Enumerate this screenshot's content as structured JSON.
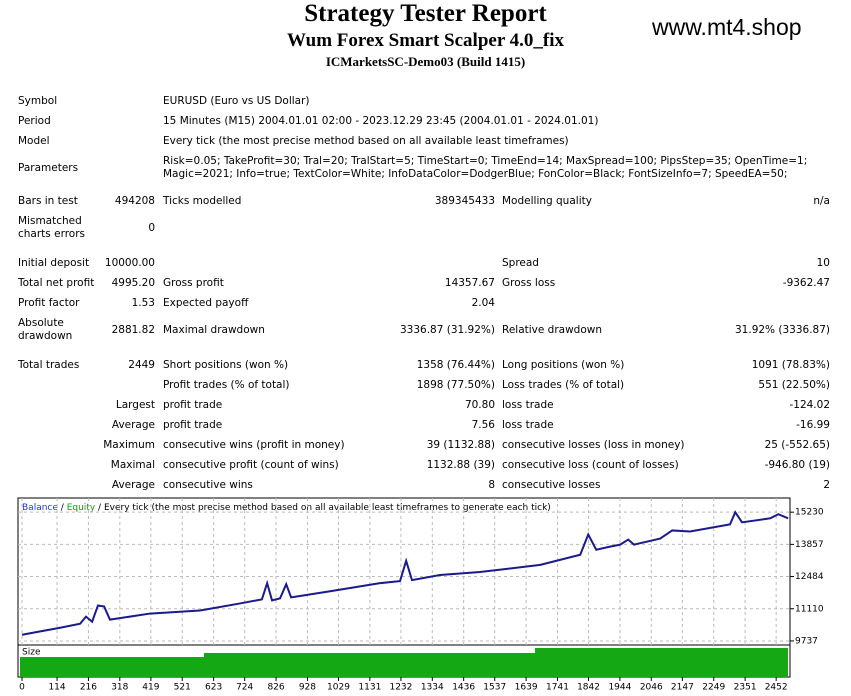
{
  "header": {
    "title": "Strategy Tester Report",
    "subtitle": "Wum Forex Smart Scalper 4.0_fix",
    "server": "ICMarketsSC-Demo03 (Build 1415)",
    "watermark": "www.mt4.shop"
  },
  "table": {
    "rows": [
      {
        "label": "Symbol",
        "span": "EURUSD (Euro vs US Dollar)"
      },
      {
        "label": "Period",
        "span": "15 Minutes (M15) 2004.01.01 02:00 - 2023.12.29 23:45 (2004.01.01 - 2024.01.01)"
      },
      {
        "label": "Model",
        "span": "Every tick (the most precise method based on all available least timeframes)"
      },
      {
        "label": "Parameters",
        "span": "Risk=0.05; TakeProfit=30; Tral=20; TralStart=5; TimeStart=0; TimeEnd=14; MaxSpread=100; PipsStep=35; OpenTime=1; Magic=2021; Info=true; TextColor=White; InfoDataColor=DodgerBlue; FonColor=Black; FontSizeInfo=7; SpeedEA=50;"
      },
      {
        "label": "Bars in test",
        "value": "494208",
        "label2": "Ticks modelled",
        "value2": "389345433",
        "label3": "Modelling quality",
        "value3": "n/a"
      },
      {
        "label": "Mismatched charts errors",
        "value": "0"
      },
      {
        "label": "Initial deposit",
        "value": "10000.00",
        "label3": "Spread",
        "value3": "10"
      },
      {
        "label": "Total net profit",
        "value": "4995.20",
        "label2": "Gross profit",
        "value2": "14357.67",
        "label3": "Gross loss",
        "value3": "-9362.47"
      },
      {
        "label": "Profit factor",
        "value": "1.53",
        "label2": "Expected payoff",
        "value2": "2.04"
      },
      {
        "label": "Absolute drawdown",
        "value": "2881.82",
        "label2": "Maximal drawdown",
        "value2": "3336.87 (31.92%)",
        "label3": "Relative drawdown",
        "value3": "31.92% (3336.87)"
      },
      {
        "label": "Total trades",
        "value": "2449",
        "label2": "Short positions (won %)",
        "value2": "1358 (76.44%)",
        "label3": "Long positions (won %)",
        "value3": "1091 (78.83%)"
      },
      {
        "label2": "Profit trades (% of total)",
        "value2": "1898 (77.50%)",
        "label3": "Loss trades (% of total)",
        "value3": "551 (22.50%)"
      },
      {
        "value": "Largest",
        "label2": "profit trade",
        "value2": "70.80",
        "label3": "loss trade",
        "value3": "-124.02"
      },
      {
        "value": "Average",
        "label2": "profit trade",
        "value2": "7.56",
        "label3": "loss trade",
        "value3": "-16.99"
      },
      {
        "value": "Maximum",
        "label2": "consecutive wins (profit in money)",
        "value2": "39 (1132.88)",
        "label3": "consecutive losses (loss in money)",
        "value3": "25 (-552.65)"
      },
      {
        "value": "Maximal",
        "label2": "consecutive profit (count of wins)",
        "value2": "1132.88 (39)",
        "label3": "consecutive loss (count of losses)",
        "value3": "-946.80 (19)"
      },
      {
        "value": "Average",
        "label2": "consecutive wins",
        "value2": "8",
        "label3": "consecutive losses",
        "value3": "2"
      }
    ]
  },
  "chart_data": {
    "type": "line",
    "legend": {
      "balance": "Balance",
      "sep1": "/",
      "equity": "Equity",
      "sep2": "/",
      "model": "Every tick (the most precise method based on all available least timeframes to generate each tick)"
    },
    "size_label": "Size",
    "x": [
      0,
      124,
      189,
      208,
      228,
      247,
      267,
      286,
      416,
      579,
      709,
      780,
      797,
      813,
      839,
      859,
      875,
      1002,
      1164,
      1229,
      1249,
      1268,
      1359,
      1489,
      1685,
      1815,
      1841,
      1867,
      1912,
      1945,
      1971,
      1990,
      2075,
      2114,
      2172,
      2302,
      2319,
      2341,
      2433,
      2459,
      2491
    ],
    "series": [
      {
        "name": "Balance",
        "color": "#1a1a8c",
        "values": [
          10000,
          10299,
          10472,
          10775,
          10559,
          11251,
          11208,
          10645,
          10905,
          11035,
          11337,
          11510,
          12202,
          11467,
          11554,
          12159,
          11597,
          11856,
          12202,
          12289,
          13154,
          12332,
          12548,
          12678,
          12981,
          13413,
          14278,
          13630,
          13759,
          13846,
          14062,
          13846,
          14105,
          14451,
          14408,
          14711,
          15230,
          14797,
          14970,
          15143,
          14970
        ]
      }
    ],
    "xlim": [
      -13,
      2497
    ],
    "ylim": [
      9564,
      15835
    ],
    "xticks": [
      0,
      114,
      216,
      318,
      419,
      521,
      623,
      724,
      826,
      928,
      1029,
      1131,
      1232,
      1334,
      1436,
      1537,
      1639,
      1741,
      1842,
      1944,
      2046,
      2147,
      2249,
      2351,
      2452
    ],
    "yticks": [
      15230,
      13857,
      12484,
      11110,
      9737
    ],
    "grid": true
  }
}
